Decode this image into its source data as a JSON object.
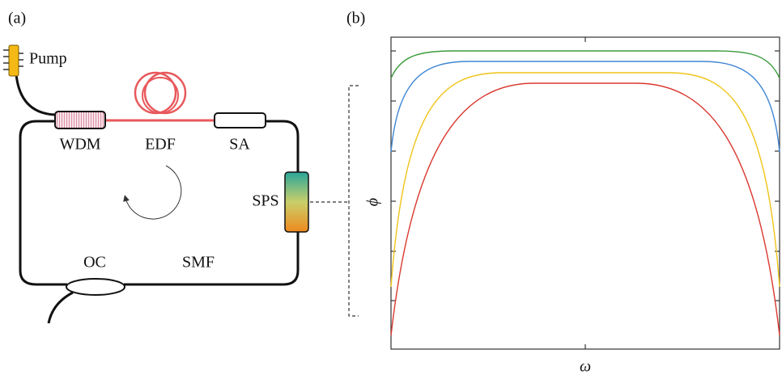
{
  "panel_a": {
    "label": "(a)",
    "components": {
      "pump": "Pump",
      "wdm": "WDM",
      "edf": "EDF",
      "sa": "SA",
      "sps": "SPS",
      "oc": "OC",
      "smf": "SMF"
    }
  },
  "panel_b": {
    "label": "(b)",
    "y_axis_label": "ϕ",
    "x_axis_label": "ω"
  }
}
